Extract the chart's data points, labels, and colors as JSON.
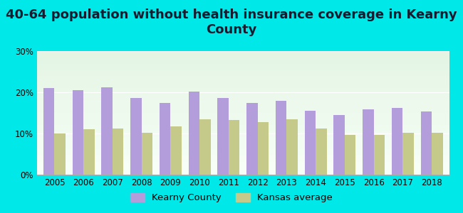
{
  "title": "40-64 population without health insurance coverage in Kearny\nCounty",
  "years": [
    2005,
    2006,
    2007,
    2008,
    2009,
    2010,
    2011,
    2012,
    2013,
    2014,
    2015,
    2016,
    2017,
    2018
  ],
  "kearny": [
    21.0,
    20.5,
    21.2,
    18.6,
    17.4,
    20.2,
    18.6,
    17.4,
    18.0,
    15.6,
    14.4,
    15.8,
    16.2,
    15.4
  ],
  "kansas": [
    10.0,
    11.0,
    11.2,
    10.2,
    11.8,
    13.4,
    13.2,
    12.8,
    13.4,
    11.2,
    9.6,
    9.6,
    10.2,
    10.2
  ],
  "kearny_color": "#b39ddb",
  "kansas_color": "#c5c98a",
  "bg_outer": "#00e8e8",
  "bg_plot_top": "#e4f5e4",
  "bg_plot_bottom": "#f8fff8",
  "ylim": [
    0,
    30
  ],
  "yticks": [
    0,
    10,
    20,
    30
  ],
  "ytick_labels": [
    "0%",
    "10%",
    "20%",
    "30%"
  ],
  "legend_kearny": "Kearny County",
  "legend_kansas": "Kansas average",
  "title_fontsize": 13,
  "tick_fontsize": 8.5,
  "legend_fontsize": 9.5
}
